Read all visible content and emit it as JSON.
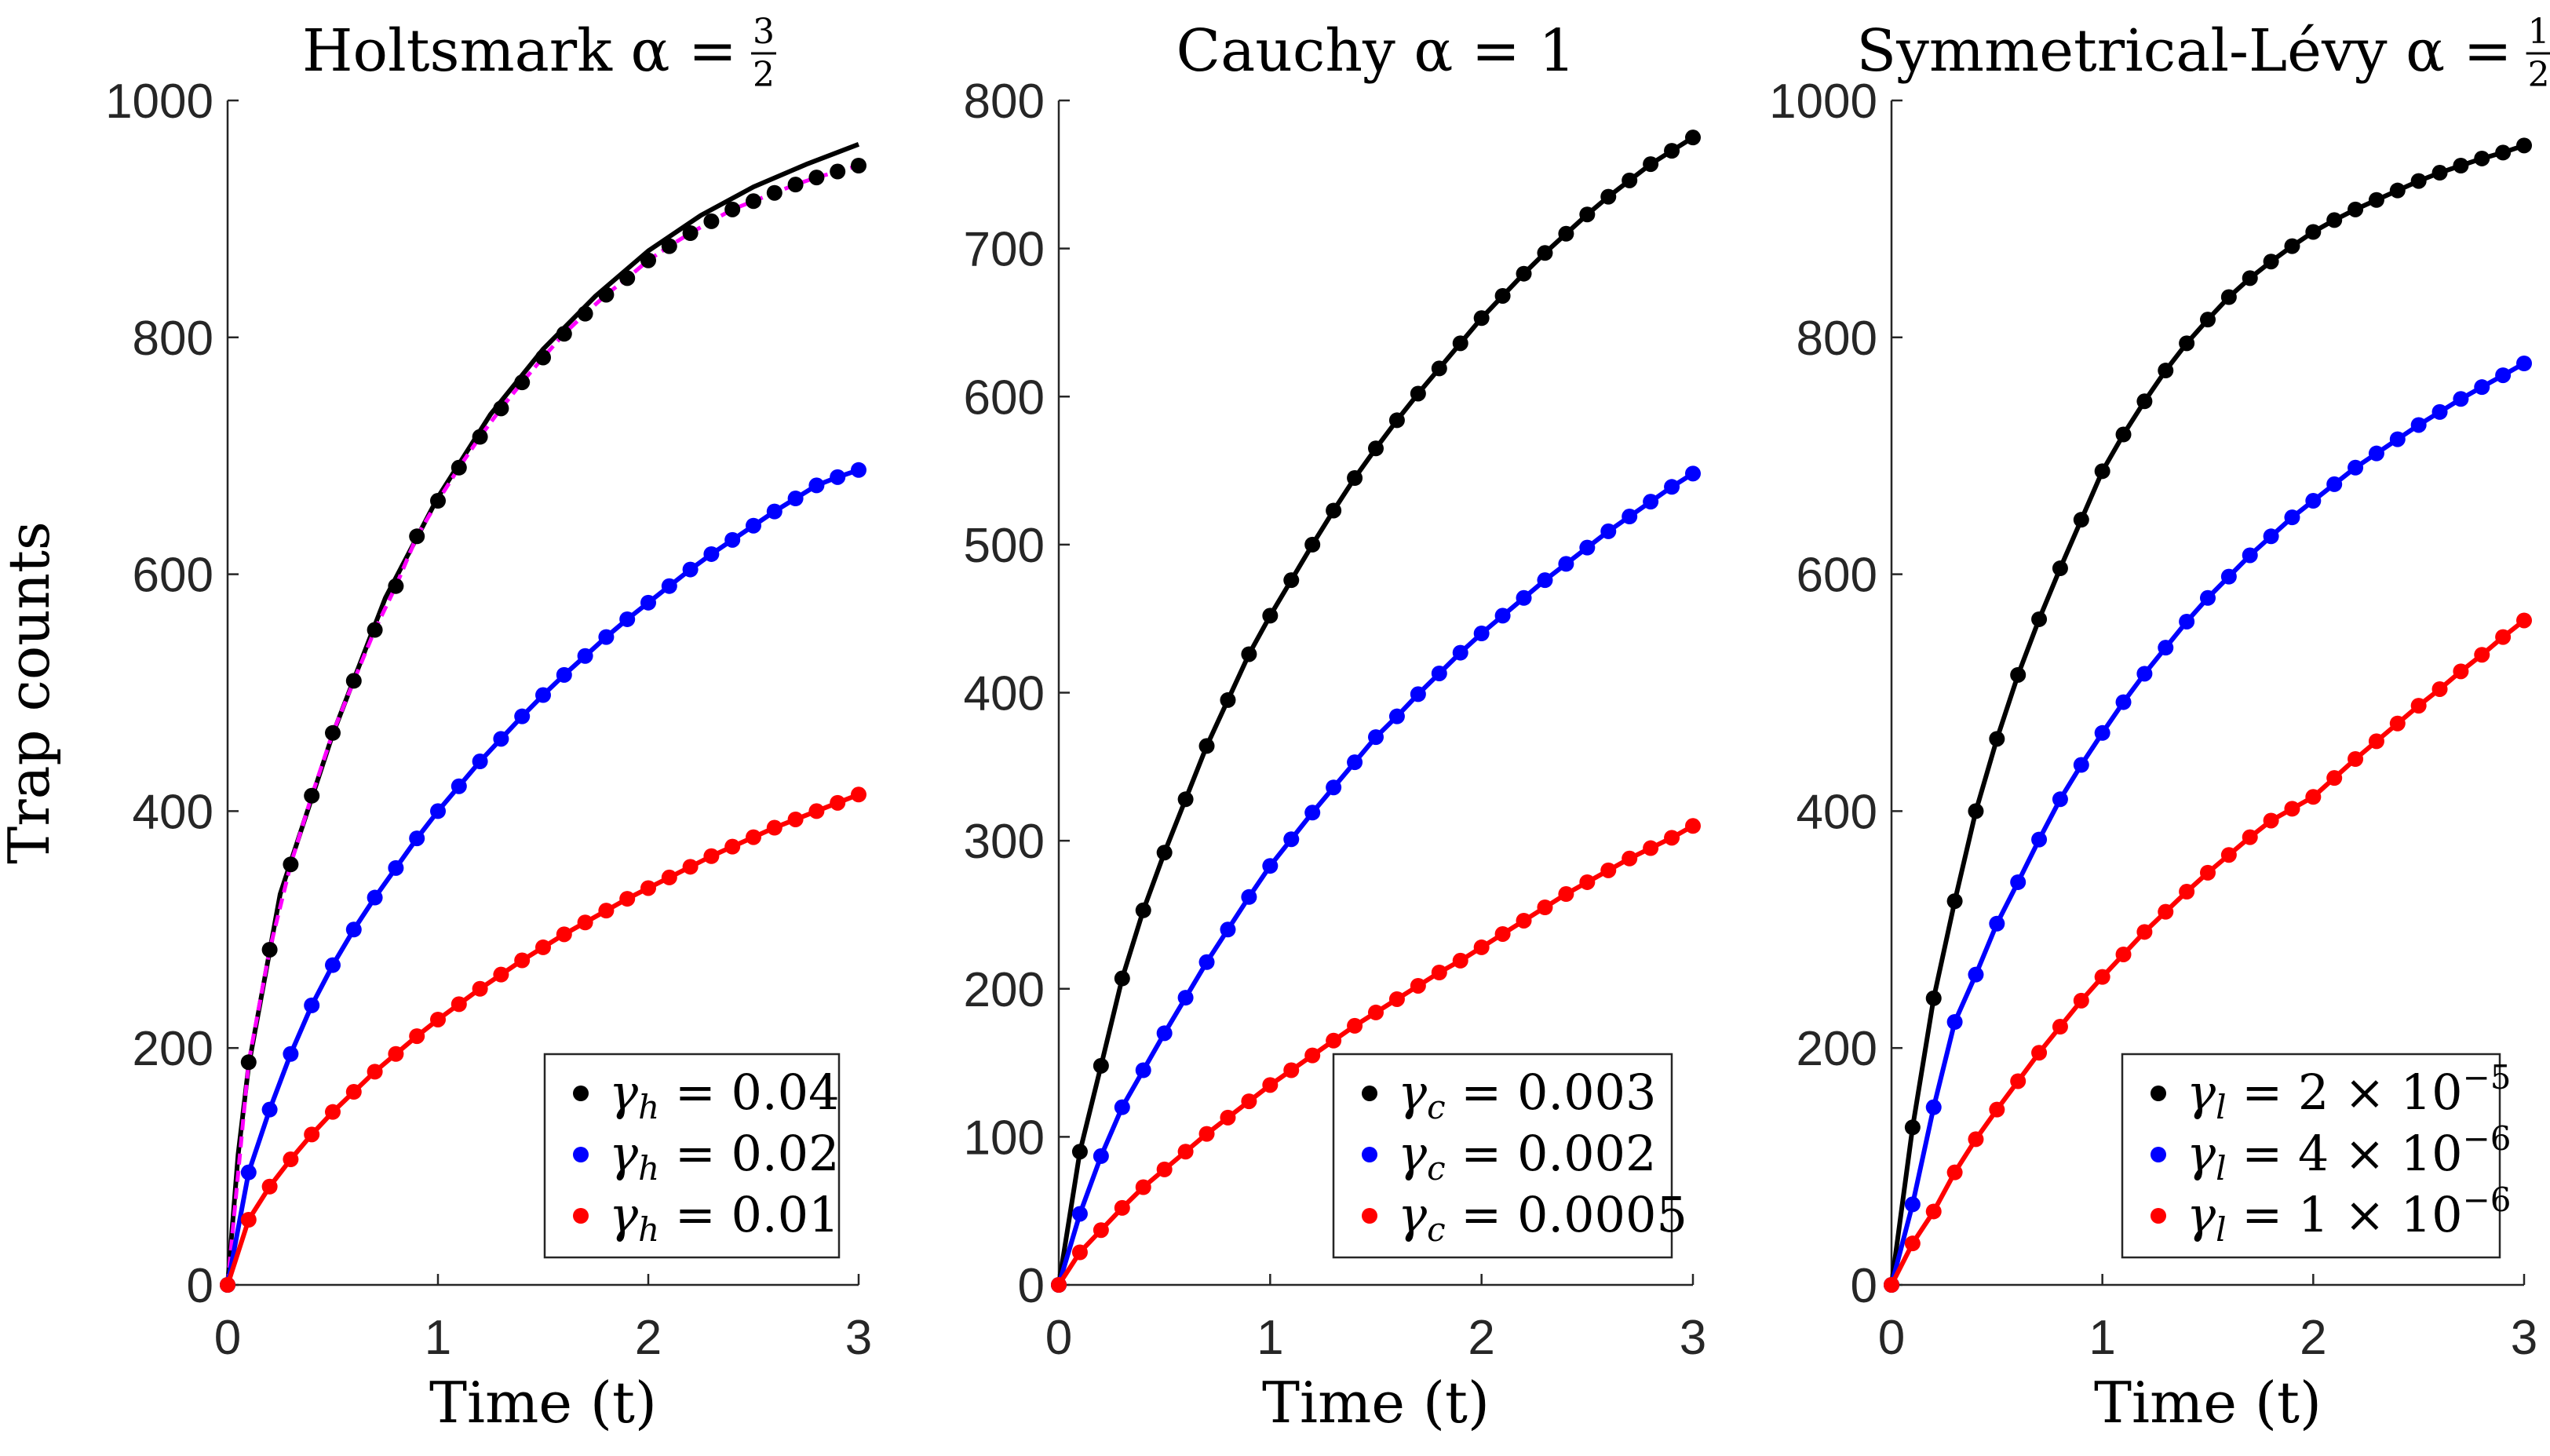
{
  "chart_data": [
    {
      "type": "line",
      "title": {
        "text": "Holtsmark α =",
        "frac_num": "3",
        "frac_den": "2"
      },
      "xlabel": "Time (t)",
      "ylabel": "Trap counts",
      "xlim": [
        0,
        3
      ],
      "ylim": [
        0,
        1000
      ],
      "xticks": [
        "0",
        "1",
        "2",
        "3"
      ],
      "yticks": [
        "0",
        "200",
        "400",
        "600",
        "800",
        "1000"
      ],
      "legend_position": "bottom-right",
      "x": [
        0,
        0.1,
        0.2,
        0.3,
        0.4,
        0.5,
        0.6,
        0.7,
        0.8,
        0.9,
        1.0,
        1.1,
        1.2,
        1.3,
        1.4,
        1.5,
        1.6,
        1.7,
        1.8,
        1.9,
        2.0,
        2.1,
        2.2,
        2.3,
        2.4,
        2.5,
        2.6,
        2.7,
        2.8,
        2.9,
        3.0
      ],
      "series": [
        {
          "name": "0.04",
          "legend": {
            "symbol": "γ",
            "sub": "h",
            "rest": "= 0.04",
            "sup": ""
          },
          "color": "#000000",
          "values": [
            0,
            188,
            283,
            355,
            413,
            466,
            510,
            553,
            590,
            632,
            662,
            690,
            716,
            740,
            762,
            783,
            803,
            820,
            836,
            850,
            865,
            877,
            888,
            898,
            908,
            915,
            922,
            929,
            935,
            940,
            945
          ],
          "fit_x": [
            0,
            0.05,
            0.1,
            0.25,
            0.5,
            0.75,
            1.0,
            1.25,
            1.5,
            1.75,
            2.0,
            2.25,
            2.5,
            2.75,
            3.0
          ],
          "fit": [
            0,
            110,
            185,
            330,
            465,
            580,
            665,
            735,
            790,
            835,
            873,
            903,
            927,
            946,
            963
          ],
          "fit2_color": "#ff00ff"
        },
        {
          "name": "0.02",
          "legend": {
            "symbol": "γ",
            "sub": "h",
            "rest": "= 0.02",
            "sup": ""
          },
          "color": "#0000ff",
          "values": [
            0,
            95,
            148,
            195,
            236,
            270,
            300,
            327,
            352,
            377,
            400,
            421,
            442,
            461,
            480,
            498,
            515,
            531,
            547,
            562,
            576,
            590,
            604,
            617,
            629,
            641,
            653,
            664,
            675,
            682,
            688
          ]
        },
        {
          "name": "0.01",
          "legend": {
            "symbol": "γ",
            "sub": "h",
            "rest": "= 0.01",
            "sup": ""
          },
          "color": "#ff0000",
          "values": [
            0,
            55,
            83,
            106,
            127,
            146,
            163,
            180,
            195,
            210,
            224,
            237,
            250,
            262,
            274,
            285,
            296,
            306,
            316,
            326,
            335,
            344,
            353,
            362,
            370,
            378,
            386,
            393,
            400,
            407,
            414
          ]
        }
      ]
    },
    {
      "type": "line",
      "title": {
        "text": "Cauchy α = 1",
        "frac_num": "",
        "frac_den": ""
      },
      "xlabel": "Time (t)",
      "ylabel": "",
      "xlim": [
        0,
        3
      ],
      "ylim": [
        0,
        800
      ],
      "xticks": [
        "0",
        "1",
        "2",
        "3"
      ],
      "yticks": [
        "0",
        "100",
        "200",
        "300",
        "400",
        "500",
        "600",
        "700",
        "800"
      ],
      "legend_position": "bottom-right",
      "x": [
        0,
        0.1,
        0.2,
        0.3,
        0.4,
        0.5,
        0.6,
        0.7,
        0.8,
        0.9,
        1.0,
        1.1,
        1.2,
        1.3,
        1.4,
        1.5,
        1.6,
        1.7,
        1.8,
        1.9,
        2.0,
        2.1,
        2.2,
        2.3,
        2.4,
        2.5,
        2.6,
        2.7,
        2.8,
        2.9,
        3.0
      ],
      "series": [
        {
          "name": "0.003",
          "legend": {
            "symbol": "γ",
            "sub": "c",
            "rest": "= 0.003",
            "sup": ""
          },
          "color": "#000000",
          "values": [
            0,
            90,
            148,
            207,
            253,
            292,
            328,
            364,
            395,
            426,
            452,
            476,
            500,
            523,
            545,
            565,
            584,
            602,
            619,
            636,
            653,
            668,
            683,
            697,
            710,
            723,
            735,
            746,
            757,
            766,
            775
          ]
        },
        {
          "name": "0.002",
          "legend": {
            "symbol": "γ",
            "sub": "c",
            "rest": "= 0.002",
            "sup": ""
          },
          "color": "#0000ff",
          "values": [
            0,
            48,
            87,
            120,
            145,
            170,
            194,
            218,
            240,
            262,
            283,
            301,
            319,
            336,
            353,
            370,
            384,
            399,
            413,
            427,
            440,
            452,
            464,
            476,
            487,
            498,
            509,
            519,
            529,
            539,
            548
          ]
        },
        {
          "name": "0.0005",
          "legend": {
            "symbol": "γ",
            "sub": "c",
            "rest": "= 0.0005",
            "sup": ""
          },
          "color": "#ff0000",
          "values": [
            0,
            22,
            37,
            52,
            66,
            78,
            90,
            102,
            113,
            124,
            135,
            145,
            155,
            165,
            175,
            184,
            193,
            202,
            211,
            219,
            228,
            237,
            246,
            255,
            264,
            272,
            280,
            288,
            295,
            302,
            310
          ]
        }
      ]
    },
    {
      "type": "line",
      "title": {
        "text": "Symmetrical-Lévy α =",
        "frac_num": "1",
        "frac_den": "2"
      },
      "xlabel": "Time (t)",
      "ylabel": "",
      "xlim": [
        0,
        3
      ],
      "ylim": [
        0,
        1000
      ],
      "xticks": [
        "0",
        "1",
        "2",
        "3"
      ],
      "yticks": [
        "0",
        "200",
        "400",
        "600",
        "800",
        "1000"
      ],
      "legend_position": "bottom-right",
      "x": [
        0,
        0.1,
        0.2,
        0.3,
        0.4,
        0.5,
        0.6,
        0.7,
        0.8,
        0.9,
        1.0,
        1.1,
        1.2,
        1.3,
        1.4,
        1.5,
        1.6,
        1.7,
        1.8,
        1.9,
        2.0,
        2.1,
        2.2,
        2.3,
        2.4,
        2.5,
        2.6,
        2.7,
        2.8,
        2.9,
        3.0
      ],
      "series": [
        {
          "name": "2e-5",
          "legend": {
            "symbol": "γ",
            "sub": "l",
            "rest": "= 2 × 10",
            "sup": "−5"
          },
          "color": "#000000",
          "values": [
            0,
            133,
            242,
            324,
            400,
            461,
            515,
            562,
            605,
            646,
            687,
            718,
            746,
            772,
            795,
            815,
            834,
            850,
            864,
            877,
            889,
            899,
            908,
            916,
            924,
            932,
            939,
            945,
            951,
            956,
            962
          ]
        },
        {
          "name": "4e-6",
          "legend": {
            "symbol": "γ",
            "sub": "l",
            "rest": "= 4 × 10",
            "sup": "−6"
          },
          "color": "#0000ff",
          "values": [
            0,
            68,
            150,
            222,
            262,
            305,
            340,
            376,
            410,
            439,
            466,
            492,
            516,
            538,
            560,
            580,
            598,
            616,
            632,
            648,
            662,
            676,
            690,
            702,
            714,
            726,
            737,
            748,
            758,
            768,
            778
          ]
        },
        {
          "name": "1e-6",
          "legend": {
            "symbol": "γ",
            "sub": "l",
            "rest": "= 1 × 10",
            "sup": "−6"
          },
          "color": "#ff0000",
          "values": [
            0,
            35,
            62,
            95,
            123,
            148,
            172,
            196,
            218,
            240,
            260,
            279,
            298,
            315,
            332,
            348,
            363,
            378,
            392,
            402,
            412,
            428,
            444,
            459,
            474,
            489,
            503,
            518,
            532,
            547,
            561
          ]
        }
      ]
    }
  ]
}
